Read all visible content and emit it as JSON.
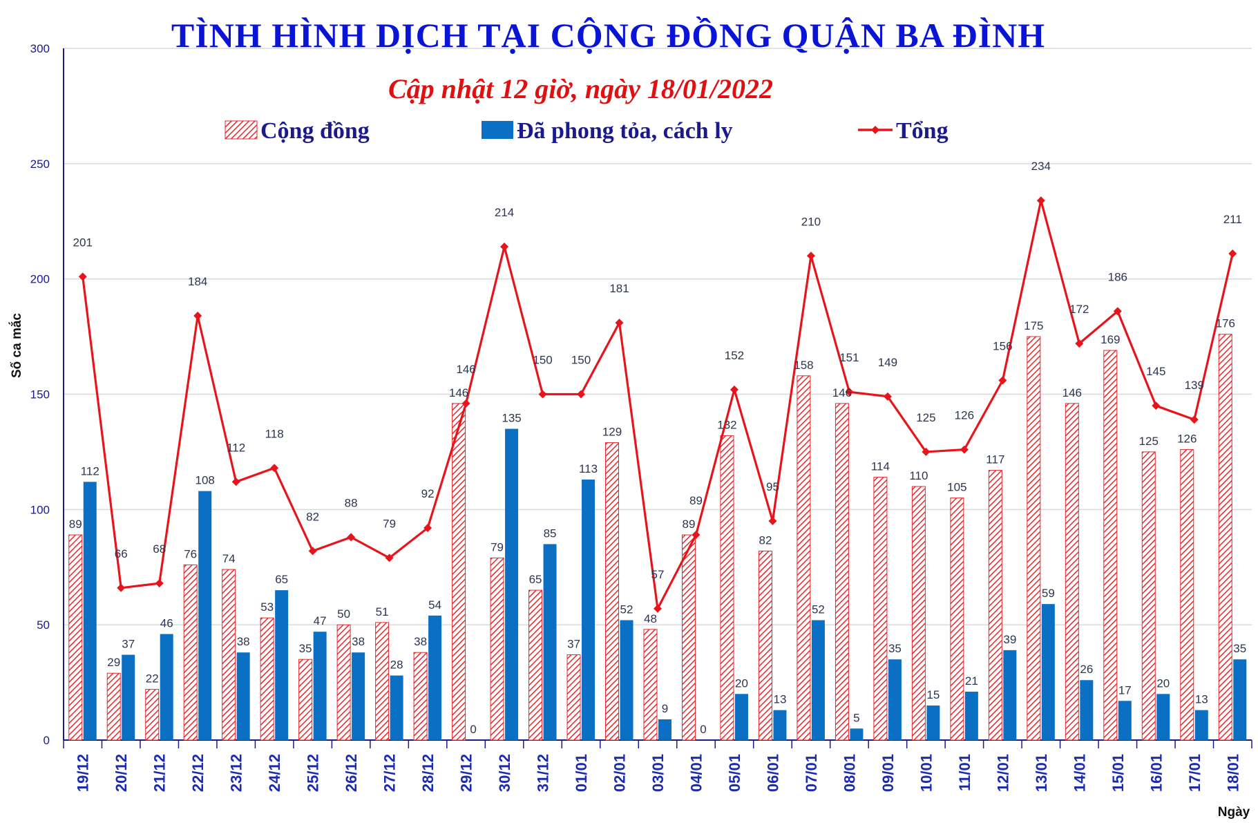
{
  "chart_data": {
    "type": "bar",
    "title": "TÌNH HÌNH DỊCH TẠI CỘNG ĐỒNG QUẬN BA ĐÌNH",
    "subtitle": "Cập nhật 12 giờ, ngày 18/01/2022",
    "xlabel": "Ngày",
    "ylabel": "Số ca mắc",
    "ylim": [
      0,
      300
    ],
    "yticks": [
      0,
      50,
      100,
      150,
      200,
      250,
      300
    ],
    "grid": true,
    "legend_position": "top",
    "categories": [
      "19/12",
      "20/12",
      "21/12",
      "22/12",
      "23/12",
      "24/12",
      "25/12",
      "26/12",
      "27/12",
      "28/12",
      "29/12",
      "30/12",
      "31/12",
      "01/01",
      "02/01",
      "03/01",
      "04/01",
      "05/01",
      "06/01",
      "07/01",
      "08/01",
      "09/01",
      "10/01",
      "11/01",
      "12/01",
      "13/01",
      "14/01",
      "15/01",
      "16/01",
      "17/01",
      "18/01"
    ],
    "series": [
      {
        "name": "Cộng đồng",
        "kind": "bar",
        "pattern": "diagonal-hatch",
        "color": "#e8262b",
        "values": [
          89,
          29,
          22,
          76,
          74,
          53,
          35,
          50,
          51,
          38,
          146,
          79,
          65,
          37,
          129,
          48,
          89,
          132,
          82,
          158,
          146,
          114,
          110,
          105,
          117,
          175,
          146,
          169,
          125,
          126,
          176
        ]
      },
      {
        "name": "Đã phong tỏa, cách ly",
        "kind": "bar",
        "color": "#0b6fc4",
        "values": [
          112,
          37,
          46,
          108,
          38,
          65,
          47,
          38,
          28,
          54,
          0,
          135,
          85,
          113,
          52,
          9,
          0,
          20,
          13,
          52,
          5,
          35,
          15,
          21,
          39,
          59,
          26,
          17,
          20,
          13,
          35
        ]
      },
      {
        "name": "Tổng",
        "kind": "line",
        "color": "#e8141b",
        "values": [
          201,
          66,
          68,
          184,
          112,
          118,
          82,
          88,
          79,
          92,
          146,
          214,
          150,
          150,
          181,
          57,
          89,
          152,
          95,
          210,
          151,
          149,
          125,
          126,
          156,
          234,
          172,
          186,
          145,
          139,
          211
        ]
      }
    ],
    "colors": {
      "title": "#0a14d6",
      "subtitle": "#e01010",
      "axis_labels": "#1a1a8c",
      "category_labels": "#1a2bb0",
      "data_labels": "#2b3550",
      "gridline": "#d9d9d9"
    }
  }
}
